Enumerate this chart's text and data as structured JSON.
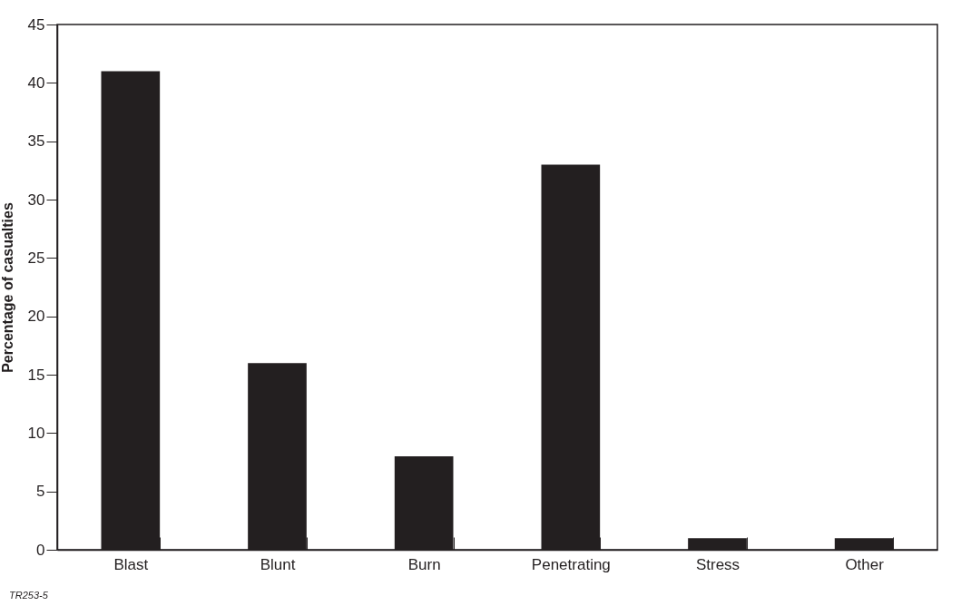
{
  "chart_data": {
    "type": "bar",
    "ylabel": "Percentage of casualties",
    "categories": [
      "Blast",
      "Blunt",
      "Burn",
      "Penetrating",
      "Stress",
      "Other"
    ],
    "values": [
      41,
      16,
      8,
      33,
      1,
      1
    ],
    "color": "#231f20",
    "ylim": [
      0,
      45
    ],
    "yticks": [
      0,
      5,
      10,
      15,
      20,
      25,
      30,
      35,
      40,
      45
    ],
    "grid": false,
    "annotations": [
      "TR253-5"
    ]
  }
}
